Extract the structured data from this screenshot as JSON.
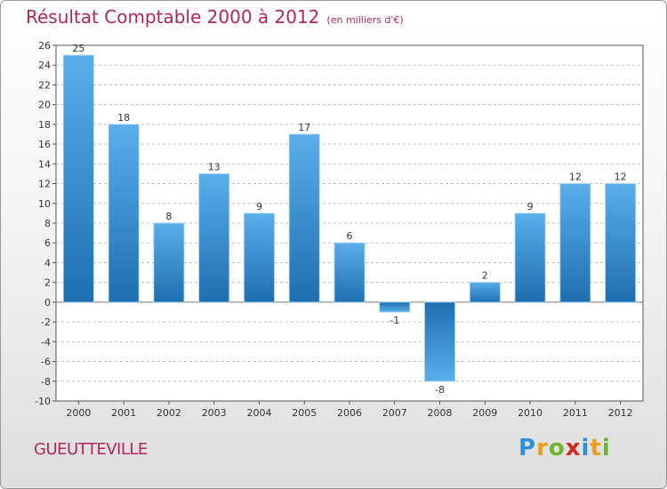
{
  "header": {
    "title": "Résultat Comptable 2000 à 2012",
    "unit": "(en milliers d'€)"
  },
  "footer": {
    "city": "GUEUTTEVILLE",
    "logo": "Proxiti"
  },
  "colors": {
    "title": "#b0265d",
    "bar_light": "#5aaeea",
    "bar_dark": "#1e6fb0"
  },
  "chart_data": {
    "type": "bar",
    "title": "Résultat Comptable 2000 à 2012",
    "subtitle": "(en milliers d'€)",
    "categories": [
      "2000",
      "2001",
      "2002",
      "2003",
      "2004",
      "2005",
      "2006",
      "2007",
      "2008",
      "2009",
      "2010",
      "2011",
      "2012"
    ],
    "values": [
      25,
      18,
      8,
      13,
      9,
      17,
      6,
      -1,
      -8,
      2,
      9,
      12,
      12
    ],
    "data_labels": [
      "25",
      "18",
      "8",
      "13",
      "9",
      "17",
      "6",
      "-1",
      "-8",
      "2",
      "9",
      "12",
      "12"
    ],
    "ylim": [
      -10,
      26
    ],
    "yticks": [
      26,
      24,
      22,
      20,
      18,
      16,
      14,
      12,
      10,
      8,
      6,
      4,
      2,
      0,
      -2,
      -4,
      -6,
      -8,
      -10
    ],
    "ytick_labels": [
      "26",
      "24",
      "22",
      "20",
      "18",
      "16",
      "14",
      "12",
      "10",
      "8",
      "6",
      "4",
      "2",
      "0",
      "-2",
      "-4",
      "-6",
      "-8",
      "-10"
    ],
    "grid": "horizontal-dashed",
    "xlabel": "",
    "ylabel": ""
  }
}
